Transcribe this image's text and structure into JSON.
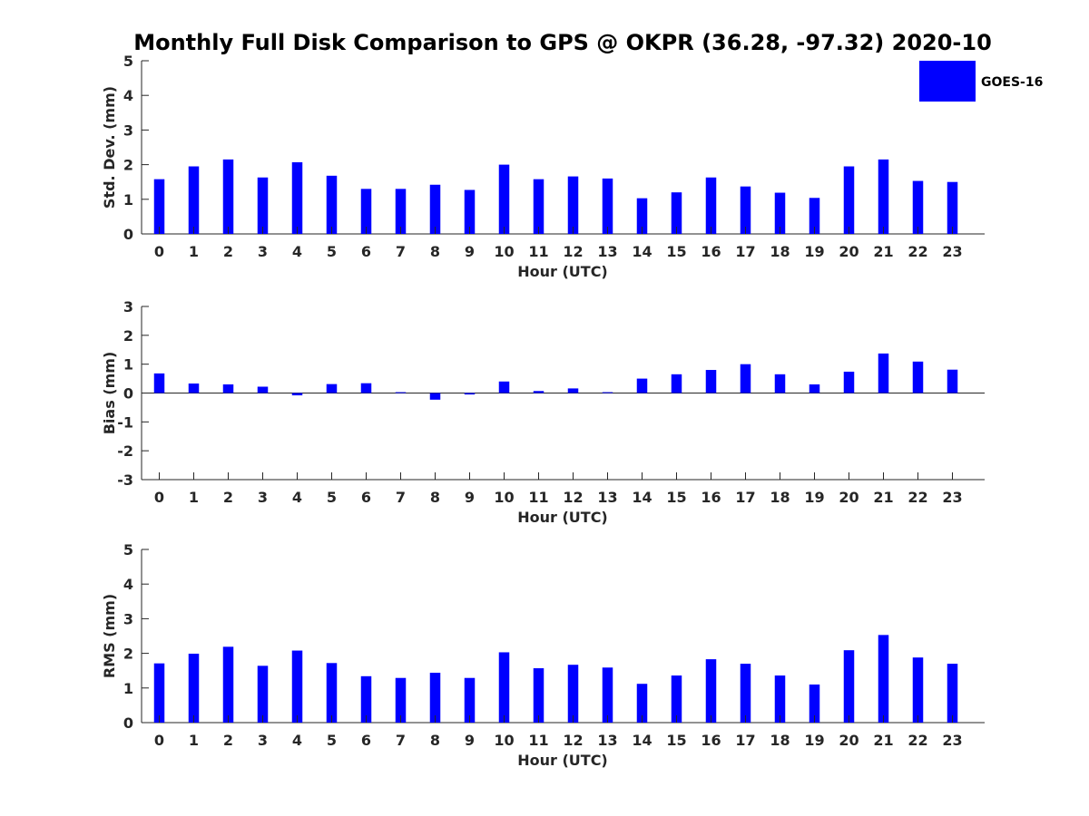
{
  "chart_data": {
    "type": "bar",
    "title": "Monthly Full Disk Comparison to GPS @ OKPR (36.28, -97.32) 2020-10",
    "legend": {
      "label": "GOES-16",
      "position": "top-right",
      "color": "#0000ff"
    },
    "bar_color": "#0000ff",
    "categories": [
      "0",
      "1",
      "2",
      "3",
      "4",
      "5",
      "6",
      "7",
      "8",
      "9",
      "10",
      "11",
      "12",
      "13",
      "14",
      "15",
      "16",
      "17",
      "18",
      "19",
      "20",
      "21",
      "22",
      "23"
    ],
    "panels": [
      {
        "id": "stddev",
        "ylabel": "Std. Dev. (mm)",
        "xlabel": "Hour (UTC)",
        "ylim": [
          0,
          5
        ],
        "yticks": [
          "0",
          "1",
          "2",
          "3",
          "4",
          "5"
        ],
        "values": [
          1.58,
          1.95,
          2.15,
          1.63,
          2.07,
          1.68,
          1.3,
          1.3,
          1.42,
          1.27,
          2.0,
          1.58,
          1.66,
          1.6,
          1.03,
          1.2,
          1.63,
          1.37,
          1.19,
          1.04,
          1.95,
          2.15,
          1.53,
          1.5
        ]
      },
      {
        "id": "bias",
        "ylabel": "Bias (mm)",
        "xlabel": "Hour (UTC)",
        "ylim": [
          -3,
          3
        ],
        "yticks": [
          "-3",
          "-2",
          "-1",
          "0",
          "1",
          "2",
          "3"
        ],
        "values": [
          0.68,
          0.33,
          0.3,
          0.22,
          -0.08,
          0.31,
          0.34,
          0.03,
          -0.23,
          -0.05,
          0.4,
          0.07,
          0.16,
          0.03,
          0.5,
          0.65,
          0.8,
          1.0,
          0.65,
          0.3,
          0.74,
          1.37,
          1.09,
          0.81
        ]
      },
      {
        "id": "rms",
        "ylabel": "RMS (mm)",
        "xlabel": "Hour (UTC)",
        "ylim": [
          0,
          5
        ],
        "yticks": [
          "0",
          "1",
          "2",
          "3",
          "4",
          "5"
        ],
        "values": [
          1.71,
          1.99,
          2.19,
          1.64,
          2.08,
          1.72,
          1.34,
          1.29,
          1.44,
          1.29,
          2.03,
          1.57,
          1.67,
          1.59,
          1.12,
          1.36,
          1.83,
          1.7,
          1.36,
          1.1,
          2.09,
          2.53,
          1.88,
          1.7
        ]
      }
    ]
  }
}
